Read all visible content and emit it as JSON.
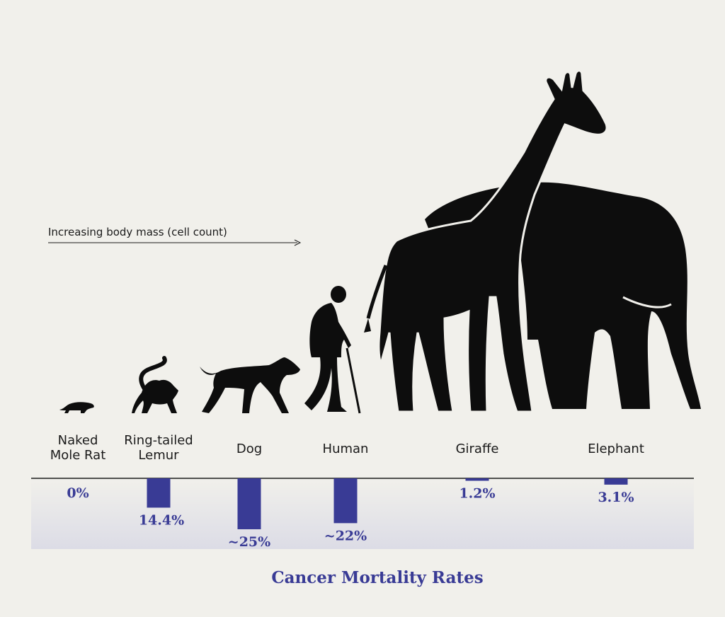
{
  "chart_data": {
    "type": "bar",
    "title": "Cancer Mortality Rates",
    "annotation": "Increasing body mass (cell count)",
    "categories": [
      "Naked\nMole Rat",
      "Ring-tailed\nLemur",
      "Dog",
      "Human",
      "Giraffe",
      "Elephant"
    ],
    "values": [
      0,
      14.4,
      25,
      22,
      1.2,
      3.1
    ],
    "value_labels": [
      "0%",
      "14.4%",
      "~25%",
      "~22%",
      "1.2%",
      "3.1%"
    ],
    "ylim": [
      0,
      25
    ],
    "bar_direction": "down",
    "grid": false,
    "legend": "none"
  },
  "icons": [
    "naked-mole-rat-silhouette-icon",
    "lemur-silhouette-icon",
    "dog-silhouette-icon",
    "human-silhouette-icon",
    "giraffe-silhouette-icon",
    "elephant-silhouette-icon"
  ],
  "colors": {
    "background": "#f1f0eb",
    "bar": "#393b95",
    "silhouette": "#0d0d0d",
    "band_top": "#f1f0eb",
    "band_bottom": "#dcdce6"
  }
}
